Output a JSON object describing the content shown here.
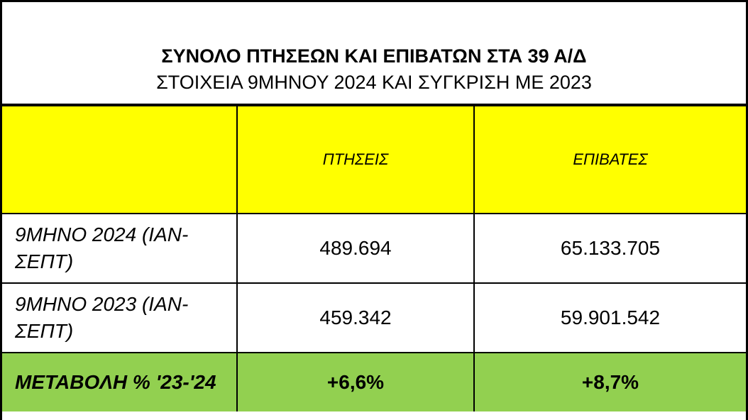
{
  "header": {
    "title": "ΣΥΝΟΛΟ ΠΤΗΣΕΩΝ ΚΑΙ ΕΠΙΒΑΤΩΝ ΣΤΑ 39 Α/Δ",
    "subtitle": "ΣΤΟΙΧΕΙΑ 9ΜΗΝΟΥ 2024 ΚΑΙ ΣΥΓΚΡΙΣΗ ΜΕ 2023"
  },
  "table": {
    "columns": [
      "ΠΤΗΣΕΙΣ",
      "ΕΠΙΒΑΤΕΣ"
    ],
    "rows": [
      [
        "9ΜΗΝΟ 2024 (ΙΑΝ-ΣΕΠΤ)",
        "489.694",
        "65.133.705"
      ],
      [
        "9ΜΗΝΟ 2023 (ΙΑΝ-ΣΕΠΤ)",
        "459.342",
        "59.901.542"
      ],
      [
        "ΜΕΤΑΒΟΛΗ % '23-'24",
        "+6,6%",
        "+8,7%"
      ]
    ]
  }
}
